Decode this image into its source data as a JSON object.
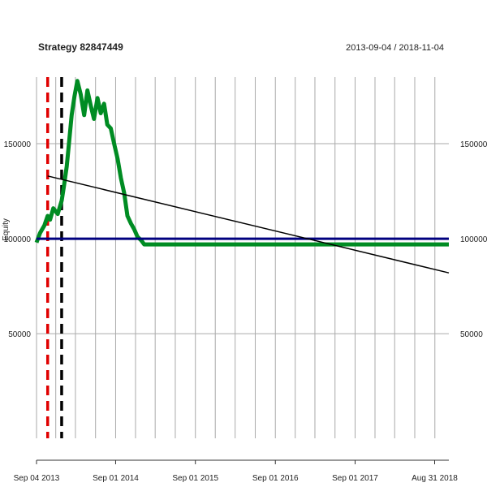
{
  "chart_data": {
    "type": "line",
    "title": "Strategy 82847449",
    "date_range": "2013-09-04 / 2018-11-04",
    "ylabel": "Equity",
    "xlabel": "",
    "ylim": [
      -5000,
      185000
    ],
    "xlim": [
      "2013-09-04",
      "2018-11-04"
    ],
    "grid": true,
    "y_ticks": [
      50000,
      100000,
      150000
    ],
    "y_tick_labels": [
      "50000",
      "100000",
      "150000"
    ],
    "x_ticks": [
      "2013-09-04",
      "2014-09-01",
      "2015-09-01",
      "2016-09-01",
      "2017-09-01",
      "2018-08-31"
    ],
    "x_tick_labels": [
      "Sep 04 2013",
      "Sep 01 2014",
      "Sep 01 2015",
      "Sep 01 2016",
      "Sep 01 2017",
      "Aug 31 2018"
    ],
    "series": [
      {
        "role": "equity",
        "color": "#008c23",
        "x": [
          "2013-09-04",
          "2013-09-20",
          "2013-10-10",
          "2013-10-25",
          "2013-11-05",
          "2013-11-20",
          "2013-12-10",
          "2013-12-28",
          "2014-01-08",
          "2014-01-20",
          "2014-02-01",
          "2014-02-12",
          "2014-02-25",
          "2014-03-10",
          "2014-03-25",
          "2014-04-10",
          "2014-04-25",
          "2014-05-10",
          "2014-05-25",
          "2014-06-10",
          "2014-06-25",
          "2014-07-10",
          "2014-07-25",
          "2014-08-10",
          "2014-08-25",
          "2014-09-10",
          "2014-09-25",
          "2014-10-10",
          "2014-10-25",
          "2014-11-10",
          "2014-11-25",
          "2014-12-10",
          "2014-12-28",
          "2015-01-10",
          "2018-11-04"
        ],
        "y": [
          98000,
          103000,
          107000,
          112000,
          110000,
          116000,
          113000,
          120000,
          128000,
          138000,
          152000,
          165000,
          175000,
          183000,
          176000,
          165000,
          178000,
          170000,
          163000,
          174000,
          166000,
          171000,
          160000,
          158000,
          150000,
          142000,
          132000,
          124000,
          112000,
          108000,
          105000,
          101000,
          99000,
          97000,
          97000
        ]
      },
      {
        "role": "initial-capital",
        "color": "#00007f",
        "x": [
          "2013-09-04",
          "2018-11-04"
        ],
        "y": [
          100000,
          100000
        ]
      },
      {
        "role": "trend",
        "color": "#000000",
        "x": [
          "2013-10-25",
          "2018-11-04"
        ],
        "y": [
          133000,
          82000
        ]
      }
    ],
    "vlines": [
      {
        "x": "2013-10-25",
        "color": "#e00000",
        "style": "dashed"
      },
      {
        "x": "2013-12-28",
        "color": "#000000",
        "style": "dashed"
      }
    ]
  }
}
